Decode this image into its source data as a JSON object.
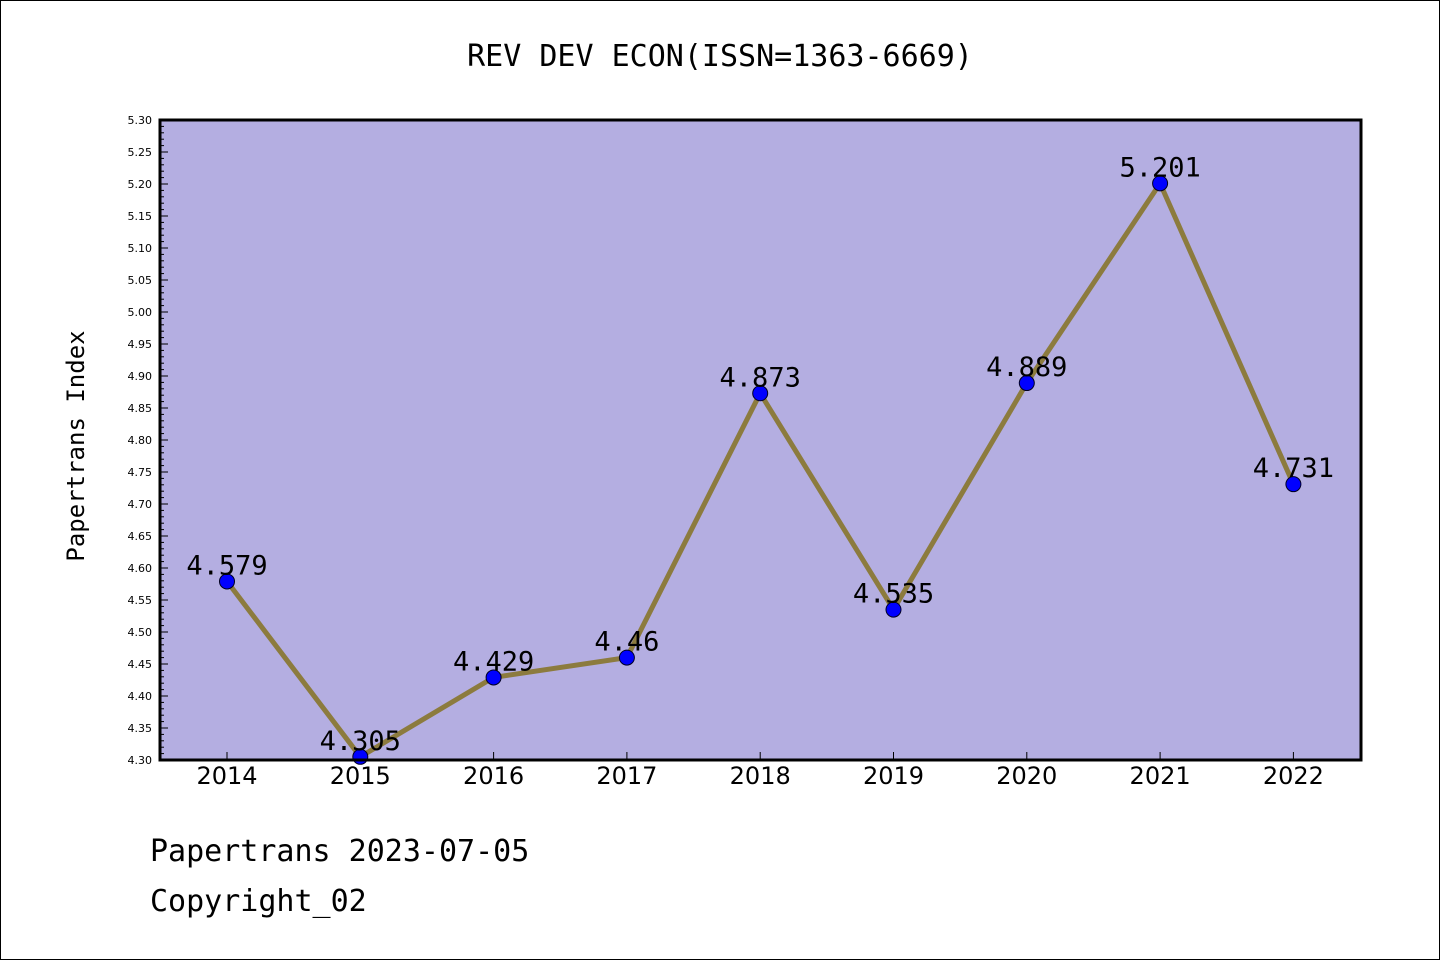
{
  "chart_data": {
    "type": "line",
    "title": "REV DEV ECON(ISSN=1363-6669)",
    "xlabel": "",
    "ylabel": "Papertrans Index",
    "categories": [
      "2014",
      "2015",
      "2016",
      "2017",
      "2018",
      "2019",
      "2020",
      "2021",
      "2022"
    ],
    "values": [
      4.579,
      4.305,
      4.429,
      4.46,
      4.873,
      4.535,
      4.889,
      5.201,
      4.731
    ],
    "data_labels": [
      "4.579",
      "4.305",
      "4.429",
      "4.46",
      "4.873",
      "4.535",
      "4.889",
      "5.201",
      "4.731"
    ],
    "ylim": [
      4.3,
      5.3
    ],
    "ytick_labels": [
      "4.30",
      "4.35",
      "4.40",
      "4.45",
      "4.50",
      "4.55",
      "4.60",
      "4.65",
      "4.70",
      "4.75",
      "4.80",
      "4.85",
      "4.90",
      "4.95",
      "5.00",
      "5.05",
      "5.10",
      "5.15",
      "5.20",
      "5.25",
      "5.30"
    ],
    "grid": false,
    "legend": "none",
    "colors": {
      "plot_background": "#b4aee1",
      "line": "#8c7b3e",
      "marker": "#0000ff"
    }
  },
  "footer": {
    "line1": "Papertrans 2023-07-05",
    "line2": "Copyright_02"
  }
}
